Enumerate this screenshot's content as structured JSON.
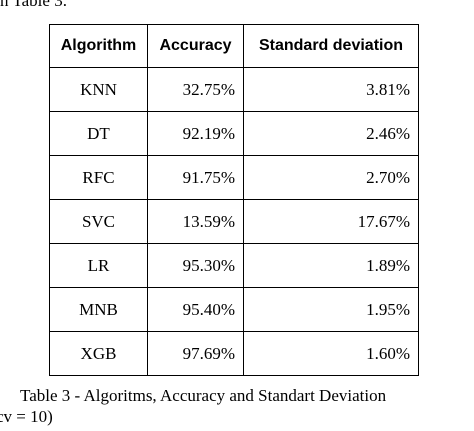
{
  "top_fragment": "n Table 3.",
  "table": {
    "headers": [
      "Algorithm",
      "Accuracy",
      "Standard deviation"
    ],
    "rows": [
      [
        "KNN",
        "32.75%",
        "3.81%"
      ],
      [
        "DT",
        "92.19%",
        "2.46%"
      ],
      [
        "RFC",
        "91.75%",
        "2.70%"
      ],
      [
        "SVC",
        "13.59%",
        "17.67%"
      ],
      [
        "LR",
        "95.30%",
        "1.89%"
      ],
      [
        "MNB",
        "95.40%",
        "1.95%"
      ],
      [
        "XGB",
        "97.69%",
        "1.60%"
      ]
    ]
  },
  "caption": {
    "line1": "Table 3 - Algoritms, Accuracy and Standart Deviation",
    "line2": "cv = 10)"
  }
}
